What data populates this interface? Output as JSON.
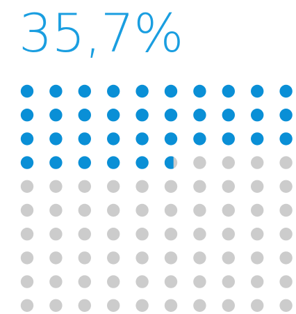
{
  "headline": {
    "value_text": "35,7%"
  },
  "colors": {
    "filled": "#0a8fd6",
    "empty": "#cccccc",
    "headline": "#1a9ee0"
  },
  "chart_data": {
    "type": "waffle",
    "value_percent": 35.7,
    "grid": {
      "rows": 10,
      "cols": 10
    },
    "total_units": 100,
    "filled_units": 35.7,
    "fill_order": "row-major-from-top-left"
  }
}
